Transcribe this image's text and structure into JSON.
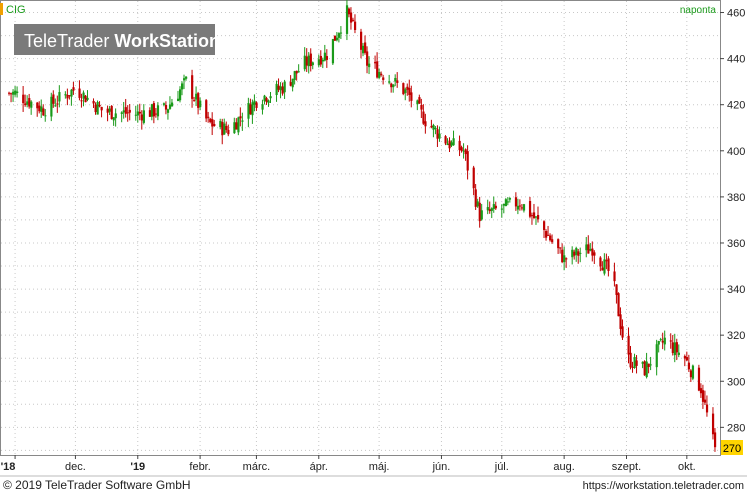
{
  "symbol": "CIG",
  "interval": "naponta",
  "watermark": {
    "brand_a": "TeleTrader",
    "brand_b": "WorkStation"
  },
  "footer": {
    "copyright": "© 2019 TeleTrader Software GmbH",
    "url": "https://workstation.teletrader.com"
  },
  "colors": {
    "up": "#1a9a1a",
    "down": "#c00000",
    "grid": "#c8c8c8",
    "last_price_marker": "#ffd400"
  },
  "chart_data": {
    "type": "candlestick",
    "ylim": [
      268,
      465
    ],
    "y_ticks": [
      280,
      300,
      320,
      340,
      360,
      380,
      400,
      420,
      440,
      460
    ],
    "last_price": 270,
    "x_tick_labels": [
      "'18",
      "dec.",
      "'19",
      "febr.",
      "márc.",
      "ápr.",
      "máj.",
      "jún.",
      "júl.",
      "aug.",
      "szept.",
      "okt."
    ],
    "grid": true,
    "close_series_approx": [
      {
        "date": "2018-11-01",
        "close": 425
      },
      {
        "date": "2018-11-15",
        "close": 418
      },
      {
        "date": "2018-12-01",
        "close": 427
      },
      {
        "date": "2018-12-15",
        "close": 417
      },
      {
        "date": "2019-01-01",
        "close": 416
      },
      {
        "date": "2019-01-15",
        "close": 418
      },
      {
        "date": "2019-01-25",
        "close": 430
      },
      {
        "date": "2019-02-05",
        "close": 412
      },
      {
        "date": "2019-02-15",
        "close": 409
      },
      {
        "date": "2019-03-01",
        "close": 422
      },
      {
        "date": "2019-03-15",
        "close": 428
      },
      {
        "date": "2019-03-25",
        "close": 438
      },
      {
        "date": "2019-04-05",
        "close": 442
      },
      {
        "date": "2019-04-15",
        "close": 460
      },
      {
        "date": "2019-04-25",
        "close": 438
      },
      {
        "date": "2019-05-05",
        "close": 432
      },
      {
        "date": "2019-05-15",
        "close": 425
      },
      {
        "date": "2019-05-25",
        "close": 412
      },
      {
        "date": "2019-06-05",
        "close": 403
      },
      {
        "date": "2019-06-12",
        "close": 400
      },
      {
        "date": "2019-06-20",
        "close": 372
      },
      {
        "date": "2019-07-01",
        "close": 375
      },
      {
        "date": "2019-07-10",
        "close": 378
      },
      {
        "date": "2019-07-20",
        "close": 368
      },
      {
        "date": "2019-08-01",
        "close": 353
      },
      {
        "date": "2019-08-15",
        "close": 358
      },
      {
        "date": "2019-08-25",
        "close": 345
      },
      {
        "date": "2019-09-01",
        "close": 310
      },
      {
        "date": "2019-09-10",
        "close": 305
      },
      {
        "date": "2019-09-20",
        "close": 318
      },
      {
        "date": "2019-09-30",
        "close": 310
      },
      {
        "date": "2019-10-08",
        "close": 297
      },
      {
        "date": "2019-10-15",
        "close": 270
      }
    ]
  }
}
